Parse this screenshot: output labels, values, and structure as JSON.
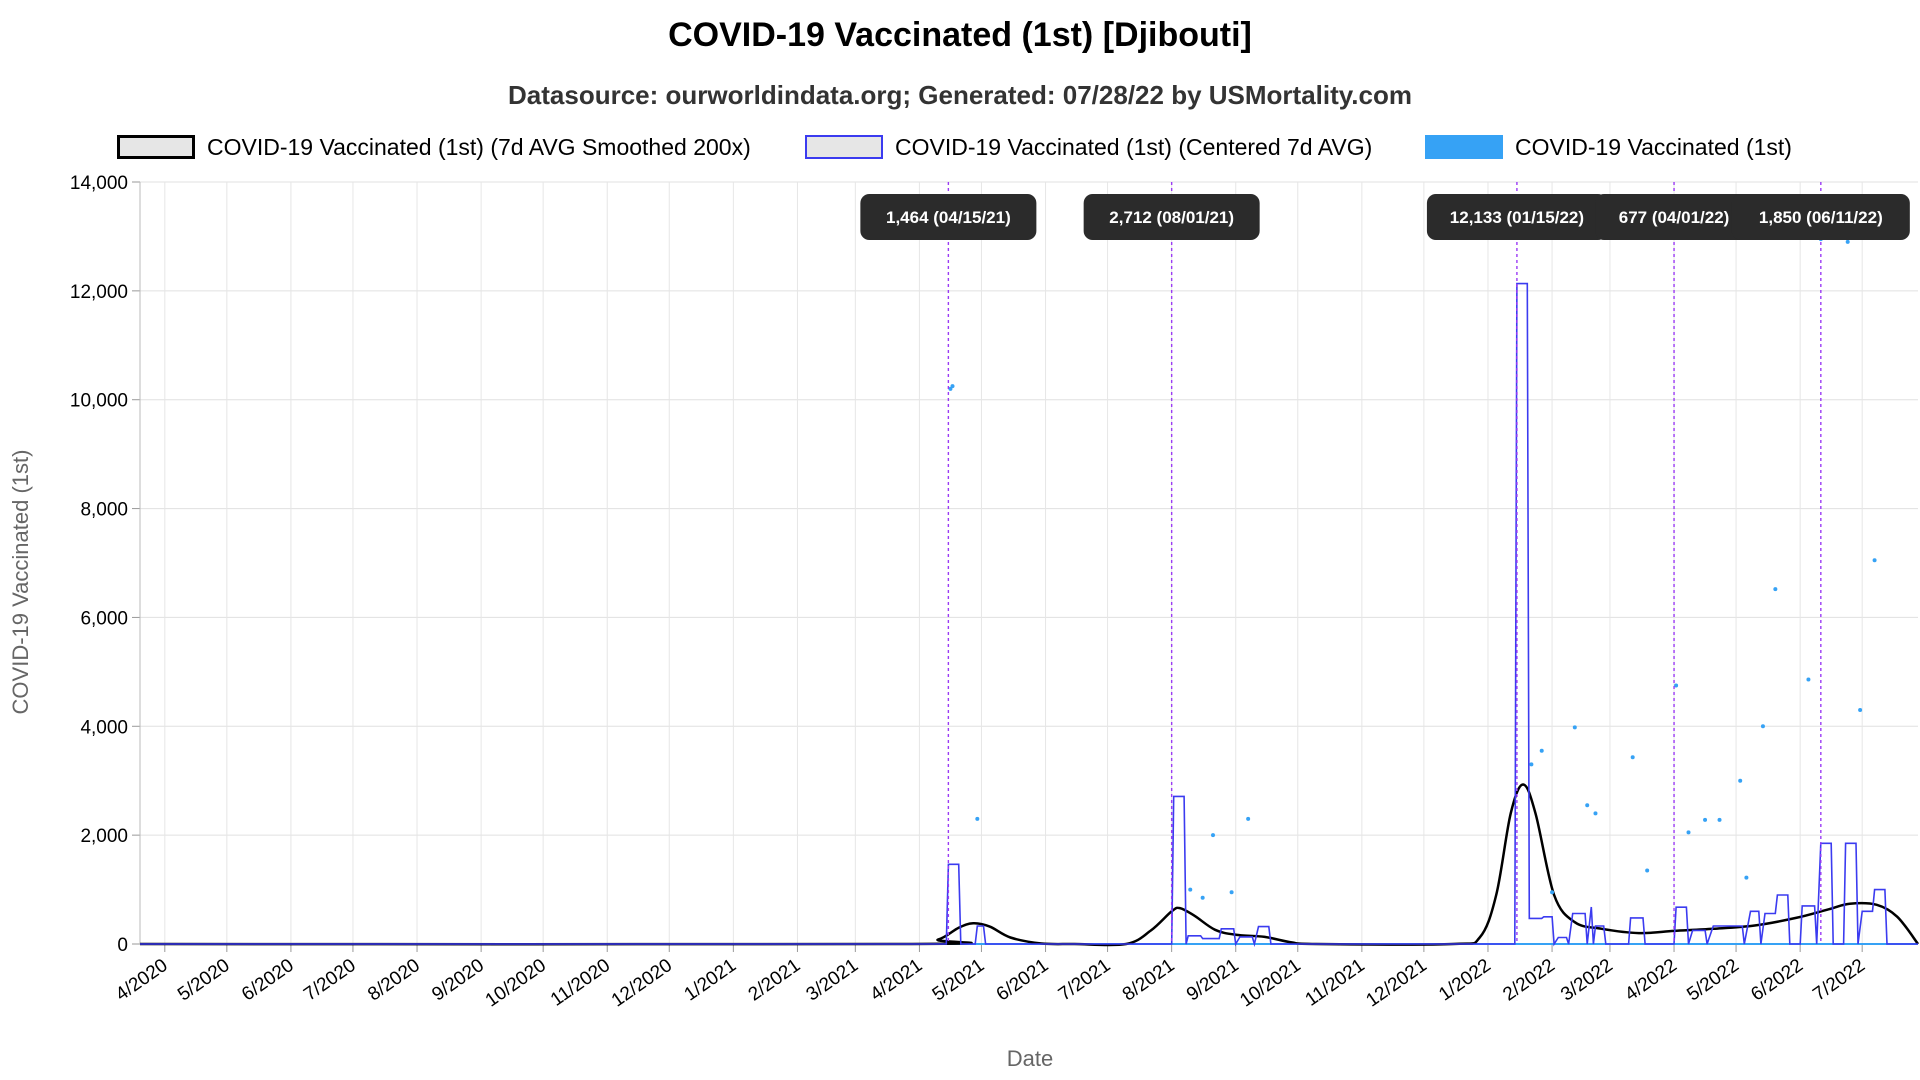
{
  "chart_data": {
    "type": "line",
    "title": "COVID-19 Vaccinated (1st) [Djibouti]",
    "subtitle": "Datasource: ourworldindata.org; Generated: 07/28/22 by USMortality.com",
    "xlabel": "Date",
    "ylabel": "COVID-19 Vaccinated (1st)",
    "ylim": [
      0,
      14000
    ],
    "yticks": [
      0,
      2000,
      4000,
      6000,
      8000,
      10000,
      12000,
      14000
    ],
    "ytick_labels": [
      "0",
      "2,000",
      "4,000",
      "6,000",
      "8,000",
      "10,000",
      "12,000",
      "14,000"
    ],
    "xlim": [
      "2020-03-20",
      "2022-07-28"
    ],
    "xtick_labels": [
      "4/2020",
      "5/2020",
      "6/2020",
      "7/2020",
      "8/2020",
      "9/2020",
      "10/2020",
      "11/2020",
      "12/2020",
      "1/2021",
      "2/2021",
      "3/2021",
      "4/2021",
      "5/2021",
      "6/2021",
      "7/2021",
      "8/2021",
      "9/2021",
      "10/2021",
      "11/2021",
      "12/2021",
      "1/2022",
      "2/2022",
      "3/2022",
      "4/2022",
      "5/2022",
      "6/2022",
      "7/2022"
    ],
    "xtick_dates": [
      "2020-04-01",
      "2020-05-01",
      "2020-06-01",
      "2020-07-01",
      "2020-08-01",
      "2020-09-01",
      "2020-10-01",
      "2020-11-01",
      "2020-12-01",
      "2021-01-01",
      "2021-02-01",
      "2021-03-01",
      "2021-04-01",
      "2021-05-01",
      "2021-06-01",
      "2021-07-01",
      "2021-08-01",
      "2021-09-01",
      "2021-10-01",
      "2021-11-01",
      "2021-12-01",
      "2022-01-01",
      "2022-02-01",
      "2022-03-01",
      "2022-04-01",
      "2022-05-01",
      "2022-06-01",
      "2022-07-01"
    ],
    "grid": true,
    "legend_position": "top",
    "series": [
      {
        "name": "COVID-19 Vaccinated (1st) (7d AVG Smoothed 200x)",
        "style": "smooth-line",
        "color": "#000000",
        "points": [
          [
            "2020-03-20",
            0
          ],
          [
            "2021-03-25",
            0
          ],
          [
            "2021-04-10",
            80
          ],
          [
            "2021-04-20",
            300
          ],
          [
            "2021-04-27",
            380
          ],
          [
            "2021-05-05",
            320
          ],
          [
            "2021-05-15",
            120
          ],
          [
            "2021-05-30",
            10
          ],
          [
            "2021-06-15",
            0
          ],
          [
            "2021-07-10",
            0
          ],
          [
            "2021-07-22",
            250
          ],
          [
            "2021-08-01",
            600
          ],
          [
            "2021-08-05",
            660
          ],
          [
            "2021-08-12",
            520
          ],
          [
            "2021-08-22",
            260
          ],
          [
            "2021-09-01",
            170
          ],
          [
            "2021-09-15",
            130
          ],
          [
            "2021-09-28",
            30
          ],
          [
            "2021-10-10",
            0
          ],
          [
            "2021-12-15",
            0
          ],
          [
            "2021-12-28",
            120
          ],
          [
            "2022-01-05",
            900
          ],
          [
            "2022-01-12",
            2400
          ],
          [
            "2022-01-18",
            2930
          ],
          [
            "2022-01-24",
            2400
          ],
          [
            "2022-02-02",
            900
          ],
          [
            "2022-02-12",
            400
          ],
          [
            "2022-02-25",
            280
          ],
          [
            "2022-03-15",
            200
          ],
          [
            "2022-04-01",
            240
          ],
          [
            "2022-04-20",
            280
          ],
          [
            "2022-05-10",
            340
          ],
          [
            "2022-05-30",
            480
          ],
          [
            "2022-06-15",
            640
          ],
          [
            "2022-06-25",
            740
          ],
          [
            "2022-07-08",
            720
          ],
          [
            "2022-07-18",
            500
          ],
          [
            "2022-07-28",
            0
          ]
        ]
      },
      {
        "name": "COVID-19 Vaccinated (1st) (Centered 7d AVG)",
        "style": "step",
        "color": "#3b3bf0",
        "points": [
          [
            "2020-03-20",
            0
          ],
          [
            "2021-04-14",
            0
          ],
          [
            "2021-04-15",
            1464
          ],
          [
            "2021-04-20",
            1464
          ],
          [
            "2021-04-21",
            0
          ],
          [
            "2021-04-28",
            0
          ],
          [
            "2021-04-29",
            330
          ],
          [
            "2021-05-02",
            330
          ],
          [
            "2021-05-03",
            0
          ],
          [
            "2021-08-01",
            0
          ],
          [
            "2021-08-02",
            2712
          ],
          [
            "2021-08-07",
            2712
          ],
          [
            "2021-08-08",
            0
          ],
          [
            "2021-08-09",
            150
          ],
          [
            "2021-08-15",
            150
          ],
          [
            "2021-08-16",
            100
          ],
          [
            "2021-08-24",
            100
          ],
          [
            "2021-08-25",
            280
          ],
          [
            "2021-08-31",
            280
          ],
          [
            "2021-09-01",
            0
          ],
          [
            "2021-09-03",
            130
          ],
          [
            "2021-09-09",
            130
          ],
          [
            "2021-09-10",
            0
          ],
          [
            "2021-09-12",
            320
          ],
          [
            "2021-09-17",
            320
          ],
          [
            "2021-09-18",
            0
          ],
          [
            "2022-01-14",
            0
          ],
          [
            "2022-01-15",
            12133
          ],
          [
            "2022-01-20",
            12133
          ],
          [
            "2022-01-21",
            470
          ],
          [
            "2022-01-27",
            470
          ],
          [
            "2022-01-28",
            500
          ],
          [
            "2022-02-01",
            500
          ],
          [
            "2022-02-02",
            0
          ],
          [
            "2022-02-04",
            120
          ],
          [
            "2022-02-08",
            120
          ],
          [
            "2022-02-09",
            0
          ],
          [
            "2022-02-11",
            560
          ],
          [
            "2022-02-17",
            560
          ],
          [
            "2022-02-18",
            0
          ],
          [
            "2022-02-20",
            680
          ],
          [
            "2022-02-21",
            0
          ],
          [
            "2022-02-22",
            330
          ],
          [
            "2022-02-26",
            330
          ],
          [
            "2022-02-27",
            0
          ],
          [
            "2022-03-10",
            0
          ],
          [
            "2022-03-11",
            480
          ],
          [
            "2022-03-17",
            480
          ],
          [
            "2022-03-18",
            0
          ],
          [
            "2022-04-01",
            0
          ],
          [
            "2022-04-02",
            677
          ],
          [
            "2022-04-07",
            677
          ],
          [
            "2022-04-08",
            0
          ],
          [
            "2022-04-10",
            250
          ],
          [
            "2022-04-16",
            250
          ],
          [
            "2022-04-17",
            0
          ],
          [
            "2022-04-20",
            330
          ],
          [
            "2022-05-04",
            330
          ],
          [
            "2022-05-05",
            0
          ],
          [
            "2022-05-08",
            600
          ],
          [
            "2022-05-12",
            600
          ],
          [
            "2022-05-13",
            0
          ],
          [
            "2022-05-15",
            560
          ],
          [
            "2022-05-20",
            560
          ],
          [
            "2022-05-21",
            900
          ],
          [
            "2022-05-26",
            900
          ],
          [
            "2022-05-27",
            0
          ],
          [
            "2022-06-01",
            0
          ],
          [
            "2022-06-02",
            700
          ],
          [
            "2022-06-08",
            700
          ],
          [
            "2022-06-09",
            0
          ],
          [
            "2022-06-11",
            1850
          ],
          [
            "2022-06-16",
            1850
          ],
          [
            "2022-06-17",
            0
          ],
          [
            "2022-06-22",
            0
          ],
          [
            "2022-06-23",
            1850
          ],
          [
            "2022-06-28",
            1850
          ],
          [
            "2022-06-29",
            0
          ],
          [
            "2022-07-01",
            600
          ],
          [
            "2022-07-06",
            600
          ],
          [
            "2022-07-07",
            1000
          ],
          [
            "2022-07-12",
            1000
          ],
          [
            "2022-07-13",
            0
          ],
          [
            "2022-07-28",
            0
          ]
        ]
      },
      {
        "name": "COVID-19 Vaccinated (1st)",
        "style": "points",
        "color": "#36a2f5",
        "points": [
          [
            "2021-04-16",
            10200
          ],
          [
            "2021-04-17",
            10250
          ],
          [
            "2021-04-29",
            2300
          ],
          [
            "2021-08-10",
            1000
          ],
          [
            "2021-08-16",
            850
          ],
          [
            "2021-08-21",
            2000
          ],
          [
            "2021-08-30",
            950
          ],
          [
            "2021-09-07",
            2300
          ],
          [
            "2022-01-22",
            3300
          ],
          [
            "2022-01-27",
            3550
          ],
          [
            "2022-02-01",
            950
          ],
          [
            "2022-02-12",
            3980
          ],
          [
            "2022-02-18",
            2550
          ],
          [
            "2022-02-22",
            2400
          ],
          [
            "2022-03-12",
            3430
          ],
          [
            "2022-03-19",
            1350
          ],
          [
            "2022-04-02",
            4750
          ],
          [
            "2022-04-08",
            2050
          ],
          [
            "2022-04-16",
            2280
          ],
          [
            "2022-04-23",
            2280
          ],
          [
            "2022-05-03",
            3000
          ],
          [
            "2022-05-06",
            1220
          ],
          [
            "2022-05-14",
            4000
          ],
          [
            "2022-05-20",
            6520
          ],
          [
            "2022-06-05",
            4860
          ],
          [
            "2022-06-30",
            4300
          ],
          [
            "2022-07-07",
            7050
          ],
          [
            "2022-06-11",
            12950
          ],
          [
            "2022-06-24",
            12900
          ]
        ]
      }
    ],
    "markers": [
      {
        "date": "2021-04-15",
        "label": "1,464 (04/15/21)"
      },
      {
        "date": "2021-08-01",
        "label": "2,712 (08/01/21)"
      },
      {
        "date": "2022-01-15",
        "label": "12,133 (01/15/22)"
      },
      {
        "date": "2022-04-01",
        "label": "677 (04/01/22)"
      },
      {
        "date": "2022-06-11",
        "label": "1,850 (06/11/22)"
      }
    ]
  },
  "colors": {
    "smoothed": "#000000",
    "centered": "#3b3bf0",
    "raw": "#36a2f5",
    "marker_line": "#9b3bf5",
    "tooltip_bg": "#2b2b2b"
  }
}
